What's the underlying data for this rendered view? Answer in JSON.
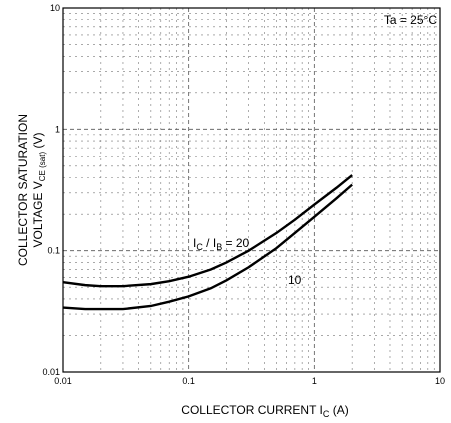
{
  "chart_data": {
    "type": "line",
    "x_scale": "log",
    "y_scale": "log",
    "xlim": [
      0.01,
      10
    ],
    "ylim": [
      0.01,
      10
    ],
    "grid": true,
    "xlabel_text": "COLLECTOR CURRENT  I",
    "xlabel_sub": "C",
    "xlabel_unit": " (A)",
    "ylabel_line1": "COLLECTOR SATURATION",
    "ylabel_line2_text": "VOLTAGE  V",
    "ylabel_line2_sub": "CE (sat)",
    "ylabel_line2_unit": "  (V)",
    "x_ticks": [
      {
        "value": 0.01,
        "label": "0.01"
      },
      {
        "value": 0.1,
        "label": "0.1"
      },
      {
        "value": 1,
        "label": "1"
      },
      {
        "value": 10,
        "label": "10"
      }
    ],
    "y_ticks": [
      {
        "value": 0.01,
        "label": "0.01"
      },
      {
        "value": 0.1,
        "label": "0.1"
      },
      {
        "value": 1,
        "label": "1"
      },
      {
        "value": 10,
        "label": "10"
      }
    ],
    "condition": "Ta = 25°C",
    "series_label_ratio": {
      "I1": "I",
      "s1": "C",
      "mid": " / I",
      "s2": "B",
      "end": " = 20"
    },
    "series": [
      {
        "name": "20",
        "x": [
          0.01,
          0.015,
          0.02,
          0.03,
          0.05,
          0.07,
          0.1,
          0.15,
          0.2,
          0.3,
          0.5,
          0.7,
          1.0,
          1.5,
          2.0
        ],
        "y": [
          0.055,
          0.052,
          0.051,
          0.051,
          0.053,
          0.056,
          0.061,
          0.07,
          0.08,
          0.1,
          0.14,
          0.18,
          0.24,
          0.33,
          0.42
        ]
      },
      {
        "name": "10",
        "x": [
          0.01,
          0.015,
          0.02,
          0.03,
          0.05,
          0.07,
          0.1,
          0.15,
          0.2,
          0.3,
          0.5,
          0.7,
          1.0,
          1.5,
          2.0
        ],
        "y": [
          0.034,
          0.033,
          0.033,
          0.033,
          0.035,
          0.038,
          0.042,
          0.049,
          0.057,
          0.073,
          0.105,
          0.14,
          0.19,
          0.27,
          0.35
        ]
      }
    ],
    "series_label_10": "10"
  }
}
